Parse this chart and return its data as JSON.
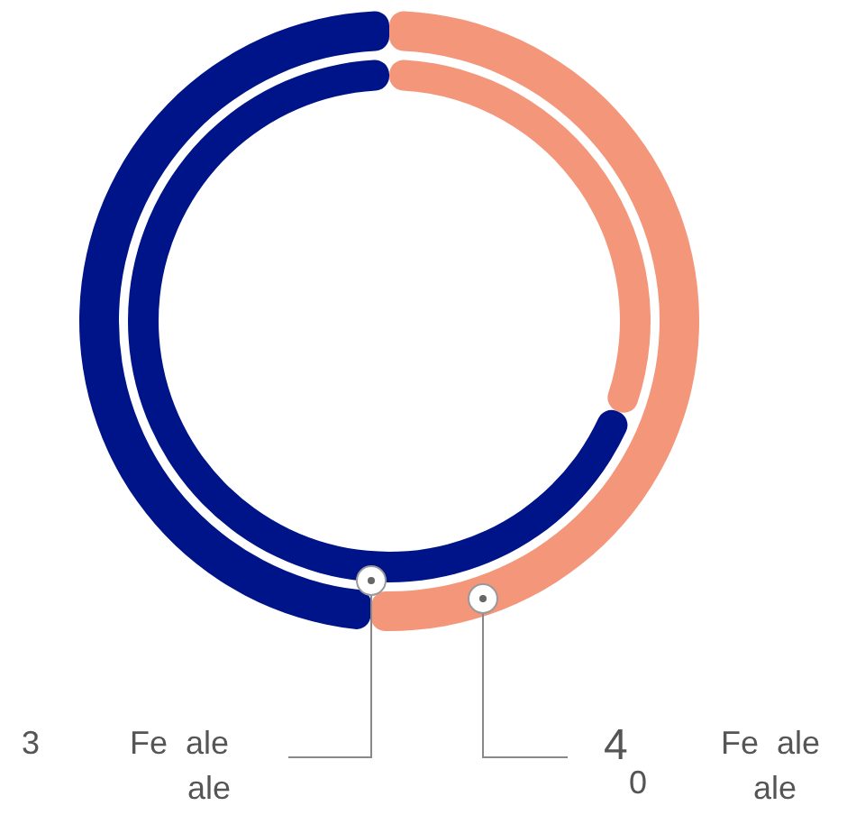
{
  "chart_data": {
    "type": "donut",
    "categories": [
      null,
      null
    ],
    "series": [
      {
        "colors": [
          "#f4967a",
          "#00148a"
        ],
        "values": [
          31,
          69
        ]
      },
      {
        "colors": [
          "#f4967a",
          "#00148a"
        ],
        "values": [
          51,
          49
        ]
      }
    ],
    "annotations": [
      "3",
      "Fe  ale",
      "ale",
      "4",
      "0",
      "Fe  ale",
      "ale"
    ]
  }
}
